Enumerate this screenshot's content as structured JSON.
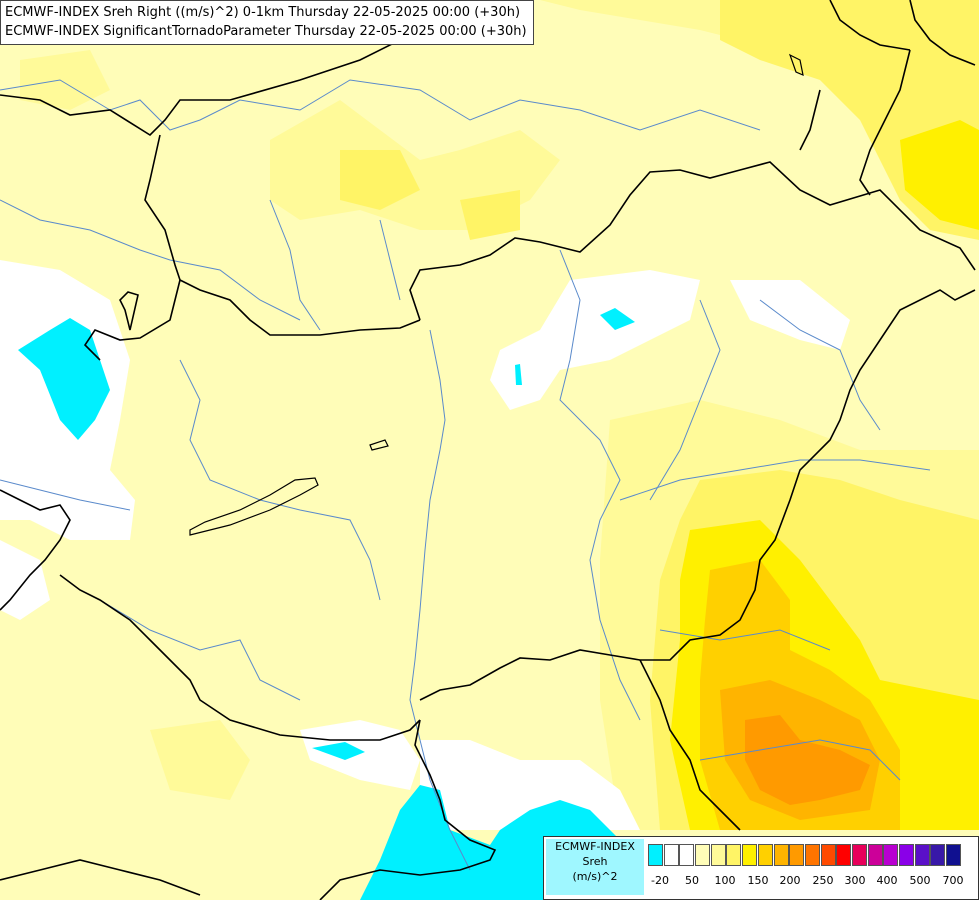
{
  "title": {
    "line1": "ECMWF-INDEX Sreh Right ((m/s)^2) 0-1km Thursday 22-05-2025 00:00 (+30h)",
    "line2": "ECMWF-INDEX SignificantTornadoParameter Thursday 22-05-2025 00:00 (+30h)"
  },
  "legend": {
    "line1": "ECMWF-INDEX",
    "line2": "Sreh",
    "line3": "(m/s)^2",
    "swatch_colors": [
      "#00f0ff",
      "#ffffff",
      "#ffffff",
      "#fffdb8",
      "#fffa99",
      "#fff466",
      "#fff000",
      "#ffd000",
      "#ffb400",
      "#ff9a00",
      "#ff7400",
      "#ff4a00",
      "#ff0000",
      "#e8005a",
      "#cc0099",
      "#b800d0",
      "#8a00e8",
      "#5a10c8",
      "#3818a8",
      "#101090"
    ],
    "tick_labels": [
      "-20",
      "50",
      "100",
      "150",
      "200",
      "250",
      "300",
      "400",
      "500",
      "700"
    ]
  },
  "colors": {
    "background": "#fffdb8",
    "cyan": "#00f0ff",
    "white": "#ffffff",
    "yellow_light": "#fffa99",
    "yellow": "#fff466",
    "yellow_strong": "#fff000",
    "orange_light": "#ffd000",
    "orange": "#ffb400",
    "orange_deep": "#ff9a00",
    "rivers": "#5a8acb",
    "borders": "#000000"
  }
}
